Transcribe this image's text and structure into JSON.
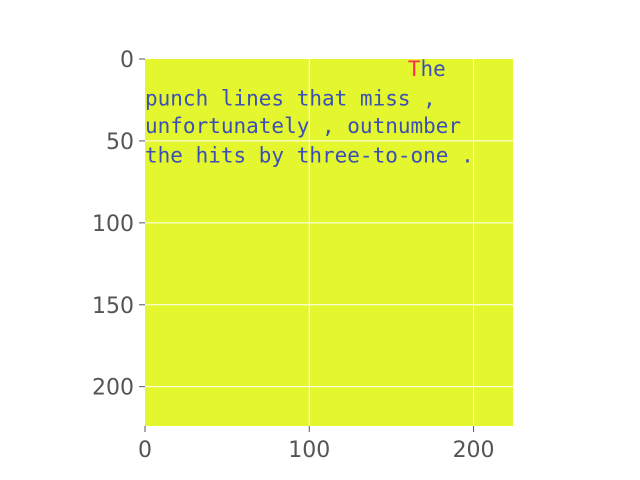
{
  "chart_data": {
    "type": "heatmap",
    "title": "",
    "xlabel": "",
    "ylabel": "",
    "xlim": [
      0,
      224
    ],
    "ylim": [
      224,
      0
    ],
    "y_inverted": true,
    "grid": true,
    "x_ticks": [
      0,
      100,
      200
    ],
    "y_ticks": [
      0,
      50,
      100,
      150,
      200
    ],
    "image_background": "#e4f72e",
    "text_color": "#3b4fb5",
    "highlight_color": "#ff2a55",
    "grid_color": "#ffffff",
    "image_text": [
      {
        "y": 6,
        "x": 160,
        "highlight": "T",
        "text": "he"
      },
      {
        "y": 24,
        "x": 0,
        "highlight": "",
        "text": "punch lines that miss ,"
      },
      {
        "y": 41,
        "x": 0,
        "highlight": "",
        "text": "unfortunately , outnumber"
      },
      {
        "y": 59,
        "x": 0,
        "highlight": "",
        "text": "the hits by three-to-one ."
      }
    ]
  }
}
